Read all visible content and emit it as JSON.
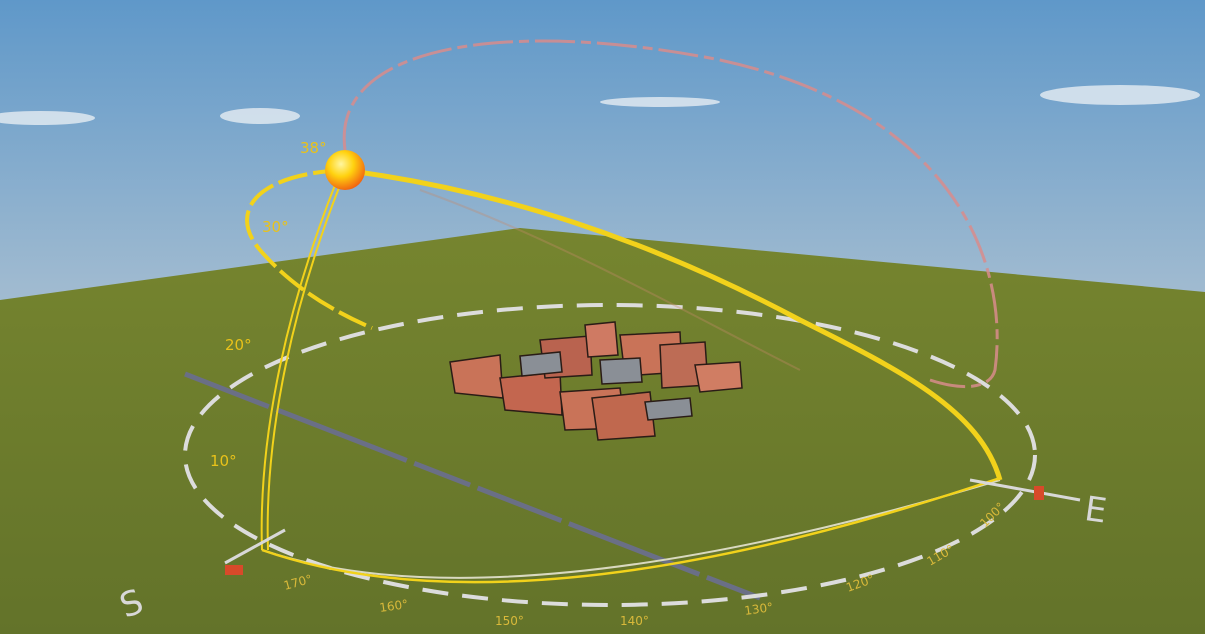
{
  "scene": {
    "altitude_labels": [
      "38°",
      "30°",
      "20°",
      "10°"
    ],
    "azimuth_labels": [
      "170°",
      "160°",
      "150°",
      "140°",
      "130°",
      "120°",
      "110°",
      "100°"
    ],
    "compass": {
      "south": "S",
      "east": "E"
    },
    "colors": {
      "sky_top": "#6fa3cf",
      "ground": "#6b7a2c",
      "sun_path": "#f2d21b",
      "summer_path": "#d98a8a",
      "horizon_ring": "#d8d8d8",
      "building": "#c9705a",
      "sun": "#ffcf10"
    }
  }
}
